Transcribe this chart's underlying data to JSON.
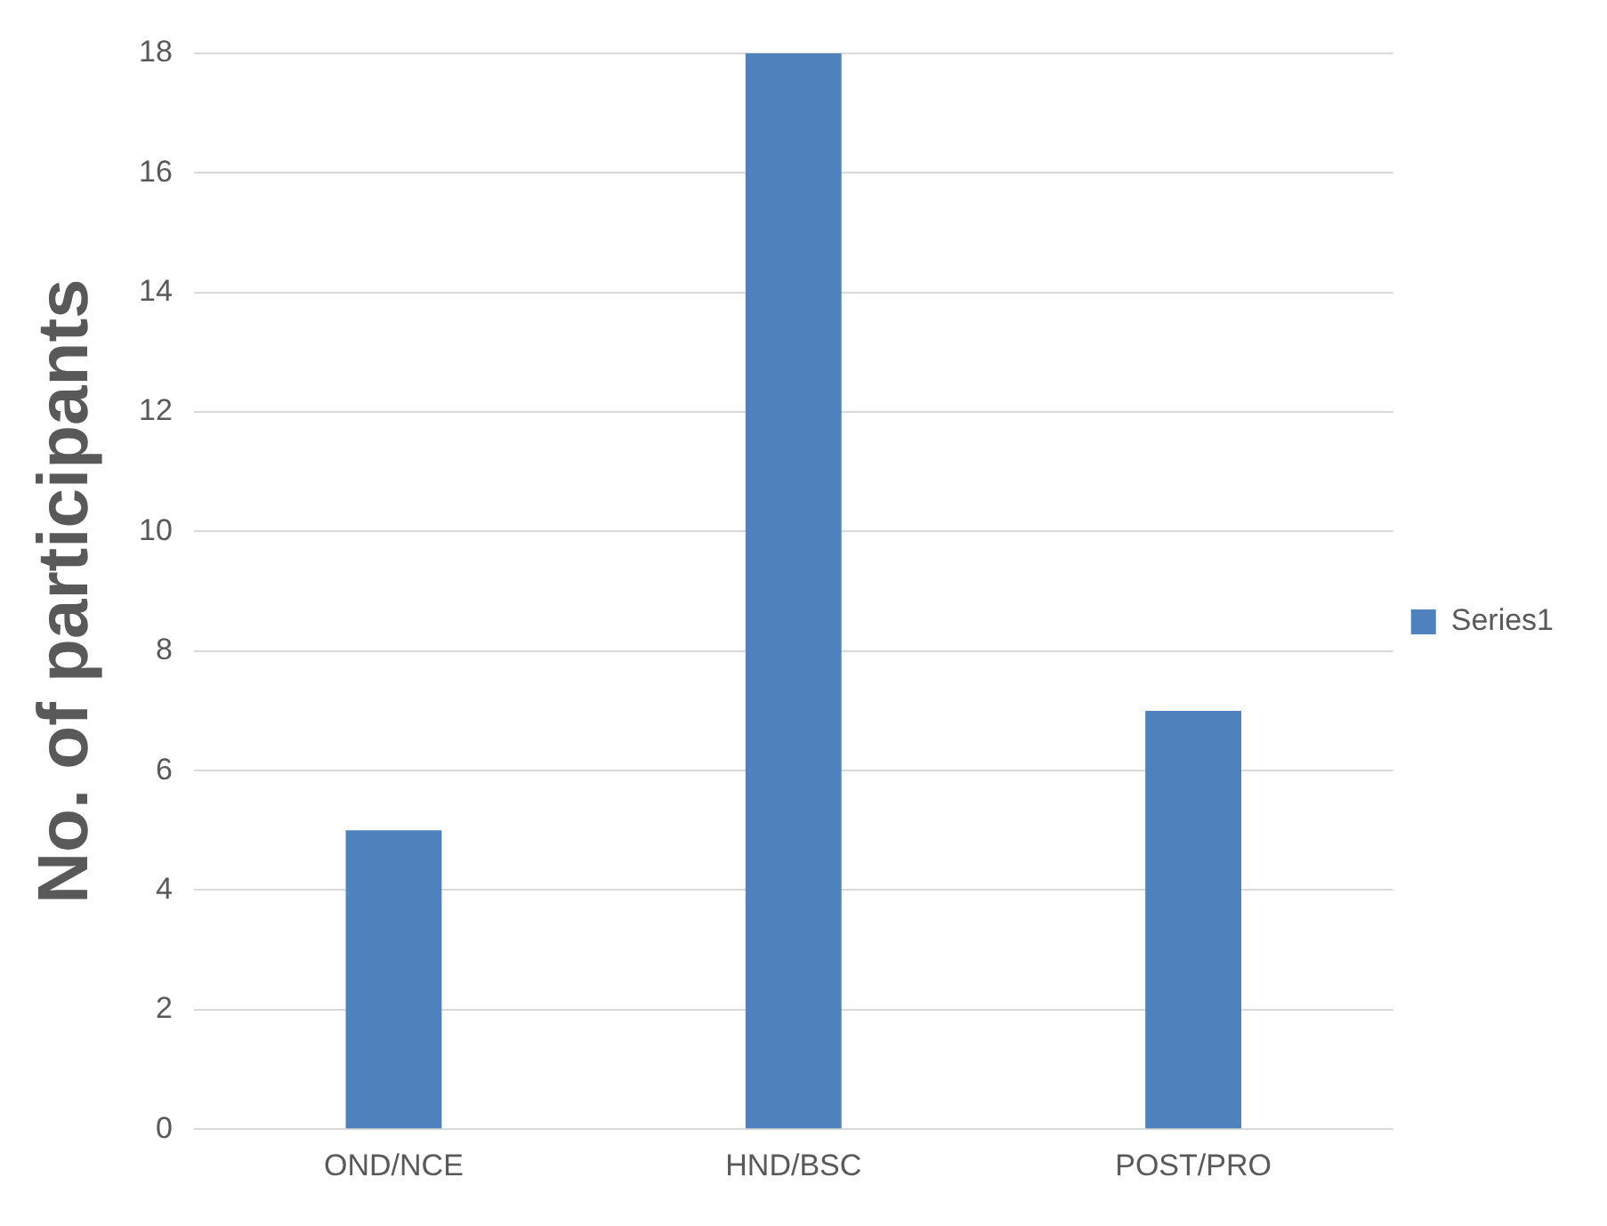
{
  "chart_data": {
    "type": "bar",
    "ylabel": "No. of participants",
    "categories": [
      "OND/NCE",
      "HND/BSC",
      "POST/PRO"
    ],
    "series": [
      {
        "name": "Series1",
        "color": "#4f81bd",
        "values": [
          5,
          18,
          7
        ]
      }
    ],
    "ylim": [
      0,
      18
    ],
    "yticks": [
      0,
      2,
      4,
      6,
      8,
      10,
      12,
      14,
      16,
      18
    ],
    "grid": "y",
    "legend": "right"
  }
}
